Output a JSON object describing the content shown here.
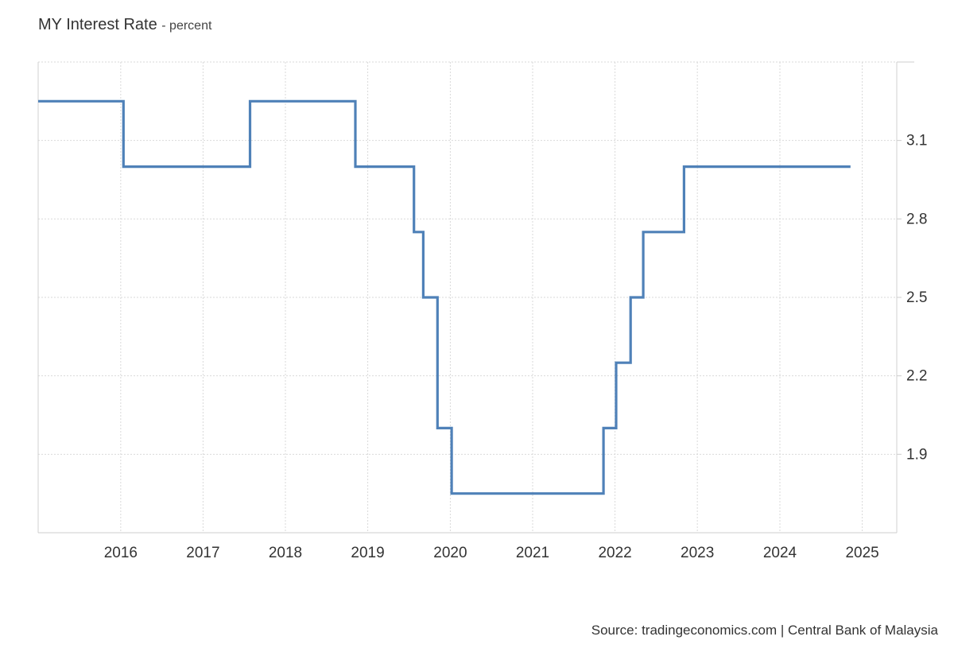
{
  "header": {
    "title": "MY Interest Rate",
    "subtitle": "- percent"
  },
  "footer": {
    "source": "Source: tradingeconomics.com | Central Bank of Malaysia"
  },
  "chart_data": {
    "type": "line",
    "step": true,
    "title": "MY Interest Rate",
    "subtitle": "- percent",
    "xlabel": "",
    "ylabel": "",
    "xlim": [
      "2015-07-01",
      "2025-12-01"
    ],
    "ylim": [
      1.6,
      3.4
    ],
    "x_ticks": [
      "2016",
      "2017",
      "2018",
      "2019",
      "2020",
      "2021",
      "2022",
      "2023",
      "2024",
      "2025"
    ],
    "y_ticks": [
      1.9,
      2.2,
      2.5,
      2.8,
      3.1
    ],
    "grid": true,
    "legend": "none",
    "color": "#4f81b8",
    "series": [
      {
        "x": [
          "2015-07-01",
          "2016-07-13",
          "2018-01-25",
          "2019-05-07",
          "2020-01-22",
          "2020-03-03",
          "2020-05-05",
          "2020-07-07",
          "2022-05-11",
          "2022-07-06",
          "2022-09-08",
          "2022-11-03",
          "2023-05-03",
          "2025-05-10"
        ],
        "values": [
          3.25,
          3.0,
          3.25,
          3.0,
          2.75,
          2.5,
          2.0,
          1.75,
          2.0,
          2.25,
          2.5,
          2.75,
          3.0,
          3.0
        ]
      }
    ]
  }
}
